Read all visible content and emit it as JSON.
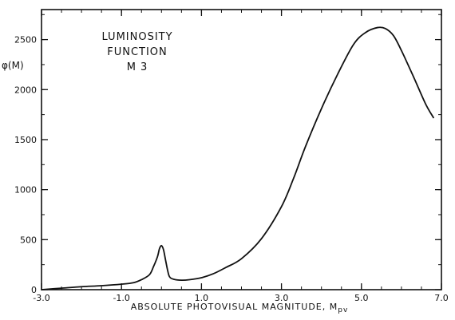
{
  "chart_data": {
    "type": "line",
    "title_lines": [
      "LUMINOSITY",
      "FUNCTION",
      "M 3"
    ],
    "ylabel": "φ(M)",
    "xlabel": "ABSOLUTE PHOTOVISUAL MAGNITUDE, M",
    "xlabel_subscript": "pv",
    "xlim": [
      -3.0,
      7.0
    ],
    "ylim": [
      0,
      2800
    ],
    "x_ticks": [
      {
        "value": -3.0,
        "label": "-3.0"
      },
      {
        "value": -1.0,
        "label": "-1.0"
      },
      {
        "value": 1.0,
        "label": "1.0"
      },
      {
        "value": 3.0,
        "label": "3.0"
      },
      {
        "value": 5.0,
        "label": "5.0"
      },
      {
        "value": 7.0,
        "label": "7.0"
      }
    ],
    "y_ticks": [
      {
        "value": 0,
        "label": "0"
      },
      {
        "value": 500,
        "label": "500"
      },
      {
        "value": 1000,
        "label": "1000"
      },
      {
        "value": 1500,
        "label": "1500"
      },
      {
        "value": 2000,
        "label": "2000"
      },
      {
        "value": 2500,
        "label": "2500"
      }
    ],
    "y_minor_step": 250,
    "x_minor_step": 0.5,
    "grid": false,
    "series": [
      {
        "x": [
          -3.0,
          -2.5,
          -2.0,
          -1.5,
          -1.0,
          -0.7,
          -0.5,
          -0.3,
          -0.2,
          -0.1,
          -0.05,
          0.0,
          0.05,
          0.1,
          0.15,
          0.2,
          0.3,
          0.5,
          0.7,
          1.0,
          1.3,
          1.6,
          2.0,
          2.5,
          3.0,
          3.3,
          3.6,
          4.0,
          4.4,
          4.8,
          5.1,
          5.4,
          5.6,
          5.8,
          6.0,
          6.3,
          6.6,
          6.8
        ],
        "y": [
          0,
          15,
          30,
          40,
          55,
          70,
          100,
          150,
          230,
          330,
          410,
          440,
          400,
          300,
          200,
          130,
          105,
          95,
          100,
          120,
          160,
          220,
          310,
          510,
          830,
          1110,
          1430,
          1810,
          2150,
          2450,
          2570,
          2620,
          2610,
          2540,
          2390,
          2130,
          1860,
          1720
        ]
      }
    ]
  }
}
